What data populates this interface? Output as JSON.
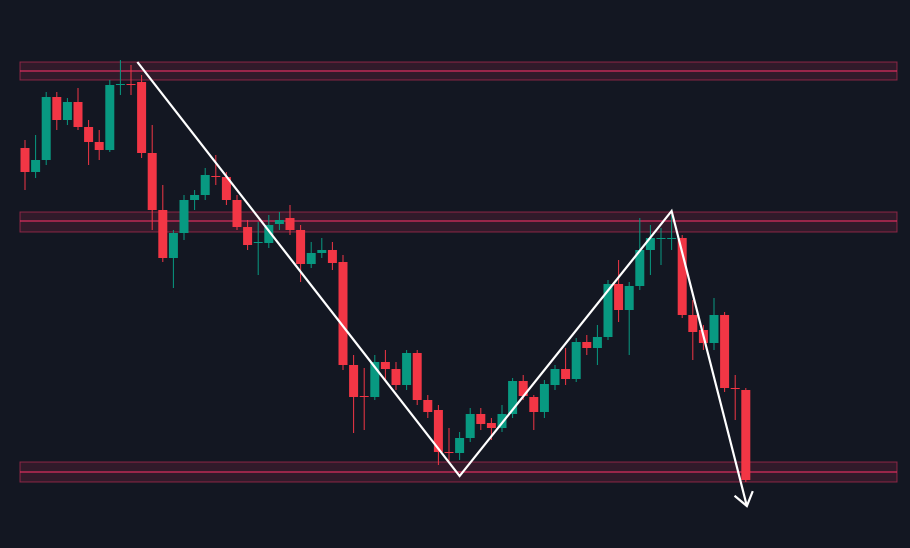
{
  "chart_data": {
    "type": "candlestick",
    "ylim": [
      0,
      548
    ],
    "up_color": "#089981",
    "down_color": "#f23645",
    "background": "#131722",
    "zone_color": "#e0305f",
    "trend_color": "#ffffff",
    "open": [
      400,
      376,
      388,
      451,
      428,
      446,
      421,
      406,
      398,
      463,
      464,
      466,
      395,
      338,
      290,
      315,
      348,
      353,
      372,
      371,
      348,
      321,
      305,
      305,
      324,
      330,
      318,
      284,
      295,
      298,
      286,
      183,
      152,
      151,
      186,
      179,
      163,
      195,
      148,
      138,
      96,
      95,
      110,
      134,
      125,
      120,
      134,
      167,
      151,
      136,
      163,
      179,
      169,
      206,
      200,
      211,
      264,
      238,
      262,
      298,
      310,
      310,
      310,
      233,
      218,
      205,
      233,
      160,
      158
    ],
    "high": [
      408,
      413,
      456,
      456,
      450,
      460,
      428,
      418,
      468,
      488,
      483,
      473,
      423,
      363,
      318,
      353,
      358,
      380,
      393,
      376,
      353,
      328,
      326,
      333,
      336,
      343,
      323,
      306,
      310,
      306,
      293,
      193,
      180,
      193,
      198,
      186,
      198,
      198,
      153,
      143,
      120,
      116,
      140,
      140,
      130,
      143,
      170,
      173,
      153,
      168,
      183,
      200,
      210,
      213,
      223,
      268,
      288,
      266,
      330,
      323,
      320,
      333,
      313,
      248,
      223,
      250,
      236,
      173,
      160
    ],
    "low": [
      358,
      370,
      383,
      418,
      423,
      418,
      383,
      388,
      396,
      453,
      453,
      390,
      318,
      286,
      260,
      308,
      338,
      348,
      363,
      343,
      318,
      298,
      273,
      300,
      318,
      313,
      266,
      280,
      290,
      278,
      178,
      115,
      118,
      148,
      168,
      158,
      158,
      143,
      130,
      83,
      86,
      88,
      106,
      118,
      108,
      116,
      130,
      148,
      118,
      130,
      158,
      163,
      166,
      193,
      183,
      208,
      226,
      193,
      258,
      273,
      283,
      298,
      230,
      188,
      198,
      198,
      156,
      128,
      66
    ],
    "close": [
      376,
      388,
      451,
      428,
      446,
      421,
      406,
      398,
      463,
      464,
      463,
      395,
      338,
      290,
      315,
      348,
      353,
      373,
      371,
      348,
      321,
      303,
      306,
      323,
      328,
      318,
      284,
      295,
      298,
      285,
      183,
      151,
      151,
      186,
      179,
      163,
      195,
      148,
      136,
      96,
      95,
      110,
      134,
      124,
      120,
      134,
      167,
      152,
      136,
      164,
      179,
      169,
      206,
      200,
      211,
      264,
      238,
      262,
      298,
      310,
      310,
      310,
      233,
      216,
      205,
      233,
      160,
      159,
      68
    ],
    "zones": [
      {
        "low": 468,
        "high": 486,
        "level": 477
      },
      {
        "low": 316,
        "high": 336,
        "level": 327
      },
      {
        "low": 66,
        "high": 86,
        "level": 76
      }
    ],
    "trend_path": {
      "x": [
        10.6,
        41,
        61,
        68.1
      ],
      "y": [
        486,
        72,
        337,
        42
      ]
    }
  }
}
